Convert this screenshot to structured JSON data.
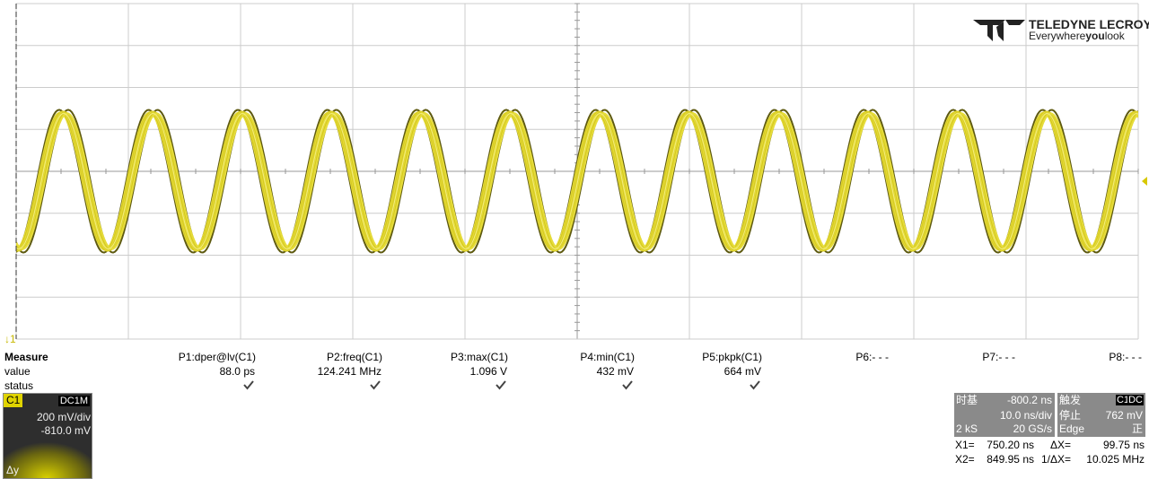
{
  "logo": {
    "brand": "TELEDYNE LECROY",
    "tagline": [
      "Everywhere",
      "you",
      "look"
    ]
  },
  "measure": {
    "title": "Measure",
    "row_labels": [
      "value",
      "status"
    ],
    "params": [
      {
        "name": "P1:dper@lv(C1)",
        "value": "88.0 ps"
      },
      {
        "name": "P2:freq(C1)",
        "value": "124.241 MHz"
      },
      {
        "name": "P3:max(C1)",
        "value": "1.096 V"
      },
      {
        "name": "P4:min(C1)",
        "value": "432 mV"
      },
      {
        "name": "P5:pkpk(C1)",
        "value": "664 mV"
      },
      {
        "name": "P6:- - -"
      },
      {
        "name": "P7:- - -"
      },
      {
        "name": "P8:- - -"
      }
    ]
  },
  "channel": {
    "name": "C1",
    "coupling": "DC1M",
    "scale": "200 mV/div",
    "offset": "-810.0 mV",
    "delta": "Δy"
  },
  "timebase": {
    "label": "时基",
    "delay": "-800.2 ns",
    "per_div": "10.0 ns/div",
    "samples": "2 kS",
    "rate": "20 GS/s"
  },
  "trigger": {
    "label": "触发",
    "source": "C1",
    "coupling": "DC",
    "state": "停止",
    "level": "762 mV",
    "mode": "Edge",
    "slope": "正"
  },
  "cursors": {
    "x1_label": "X1=",
    "x1": "750.20 ns",
    "dx_label": "ΔX=",
    "dx": "99.75 ns",
    "x2_label": "X2=",
    "x2": "849.95 ns",
    "inv_label": "1/ΔX=",
    "inv": "10.025 MHz"
  }
}
